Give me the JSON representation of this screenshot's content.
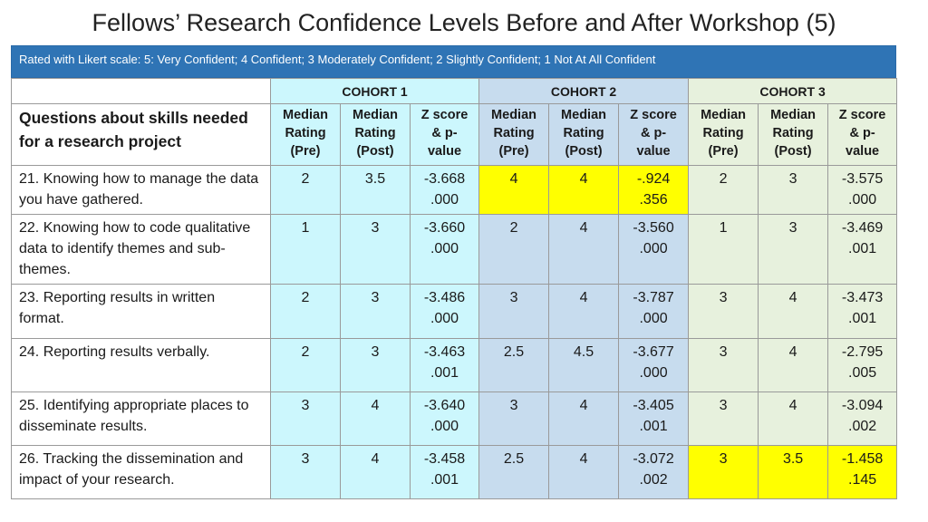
{
  "title": "Fellows’ Research Confidence Levels Before and After Workshop (5)",
  "scale_note": "Rated with Likert scale: 5: Very Confident; 4 Confident; 3 Moderately Confident; 2 Slightly Confident; 1 Not At All Confident",
  "question_header": "Questions about skills needed for a research project",
  "cohorts": [
    "COHORT 1",
    "COHORT 2",
    "COHORT 3"
  ],
  "subheaders": [
    "Median Rating (Pre)",
    "Median Rating (Post)",
    "Z score & p-value"
  ],
  "subheader_lines": {
    "pre": [
      "Median",
      "Rating",
      "(Pre)"
    ],
    "post": [
      "Median",
      "Rating",
      "(Post)"
    ],
    "z": [
      "Z score",
      "& p-",
      "value"
    ]
  },
  "highlight_color": "#ffff00",
  "rows": [
    {
      "question": "21. Knowing how to manage the data you have gathered.",
      "c1": {
        "pre": "2",
        "post": "3.5",
        "z": "-3.668",
        "p": ".000"
      },
      "c2": {
        "pre": "4",
        "post": "4",
        "z": "-.924",
        "p": ".356"
      },
      "c3": {
        "pre": "2",
        "post": "3",
        "z": "-3.575",
        "p": ".000"
      }
    },
    {
      "question": "22. Knowing how to code qualitative data to identify themes and sub-themes.",
      "c1": {
        "pre": "1",
        "post": "3",
        "z": "-3.660",
        "p": ".000"
      },
      "c2": {
        "pre": "2",
        "post": "4",
        "z": "-3.560",
        "p": ".000"
      },
      "c3": {
        "pre": "1",
        "post": "3",
        "z": "-3.469",
        "p": ".001"
      }
    },
    {
      "question": "23. Reporting results in written format.",
      "c1": {
        "pre": "2",
        "post": "3",
        "z": "-3.486",
        "p": ".000"
      },
      "c2": {
        "pre": "3",
        "post": "4",
        "z": "-3.787",
        "p": ".000"
      },
      "c3": {
        "pre": "3",
        "post": "4",
        "z": "-3.473",
        "p": ".001"
      }
    },
    {
      "question": "24. Reporting results verbally.",
      "c1": {
        "pre": "2",
        "post": "3",
        "z": "-3.463",
        "p": ".001"
      },
      "c2": {
        "pre": "2.5",
        "post": "4.5",
        "z": "-3.677",
        "p": ".000"
      },
      "c3": {
        "pre": "3",
        "post": "4",
        "z": "-2.795",
        "p": ".005"
      }
    },
    {
      "question": "25. Identifying appropriate places to disseminate results.",
      "c1": {
        "pre": "3",
        "post": "4",
        "z": "-3.640",
        "p": ".000"
      },
      "c2": {
        "pre": "3",
        "post": "4",
        "z": "-3.405",
        "p": ".001"
      },
      "c3": {
        "pre": "3",
        "post": "4",
        "z": "-3.094",
        "p": ".002"
      }
    },
    {
      "question": "26. Tracking the dissemination and impact of your research.",
      "c1": {
        "pre": "3",
        "post": "4",
        "z": "-3.458",
        "p": ".001"
      },
      "c2": {
        "pre": "2.5",
        "post": "4",
        "z": "-3.072",
        "p": ".002"
      },
      "c3": {
        "pre": "3",
        "post": "3.5",
        "z": "-1.458",
        "p": ".145"
      }
    }
  ],
  "highlighted_cells": [
    "0.c2",
    "5.c3"
  ]
}
